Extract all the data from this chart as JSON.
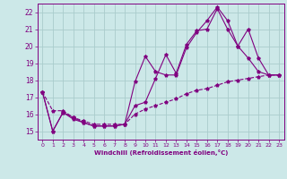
{
  "xlabel": "Windchill (Refroidissement éolien,°C)",
  "background_color": "#cce8e8",
  "grid_color": "#aacccc",
  "line_color": "#800080",
  "xlim": [
    -0.5,
    23.5
  ],
  "ylim": [
    14.5,
    22.5
  ],
  "yticks": [
    15,
    16,
    17,
    18,
    19,
    20,
    21,
    22
  ],
  "xticks": [
    0,
    1,
    2,
    3,
    4,
    5,
    6,
    7,
    8,
    9,
    10,
    11,
    12,
    13,
    14,
    15,
    16,
    17,
    18,
    19,
    20,
    21,
    22,
    23
  ],
  "series": [
    {
      "linestyle": "--",
      "x": [
        0,
        1,
        2,
        3,
        4,
        5,
        6,
        7,
        8,
        9,
        10,
        11,
        12,
        13,
        14,
        15,
        16,
        17,
        18,
        19,
        20,
        21,
        22,
        23
      ],
      "y": [
        17.3,
        16.2,
        16.2,
        15.8,
        15.6,
        15.4,
        15.4,
        15.4,
        15.4,
        16.0,
        16.3,
        16.5,
        16.7,
        16.9,
        17.2,
        17.4,
        17.5,
        17.7,
        17.9,
        18.0,
        18.1,
        18.2,
        18.3,
        18.3
      ]
    },
    {
      "linestyle": "-",
      "x": [
        0,
        1,
        2,
        3,
        4,
        5,
        6,
        7,
        8,
        9,
        10,
        11,
        12,
        13,
        14,
        15,
        16,
        17,
        18,
        19,
        20,
        21,
        22,
        23
      ],
      "y": [
        17.3,
        15.0,
        16.1,
        15.7,
        15.5,
        15.3,
        15.3,
        15.3,
        15.4,
        17.9,
        19.4,
        18.5,
        18.3,
        18.3,
        19.9,
        20.8,
        21.5,
        22.3,
        21.5,
        20.0,
        19.3,
        18.5,
        18.3,
        18.3
      ]
    },
    {
      "linestyle": "-",
      "x": [
        0,
        1,
        2,
        3,
        4,
        5,
        6,
        7,
        8,
        9,
        10,
        11,
        12,
        13,
        14,
        15,
        16,
        17,
        18,
        19,
        20,
        21,
        22,
        23
      ],
      "y": [
        17.3,
        15.0,
        16.1,
        15.8,
        15.5,
        15.3,
        15.3,
        15.3,
        15.4,
        16.5,
        16.7,
        18.1,
        19.5,
        18.4,
        20.1,
        20.9,
        21.0,
        22.2,
        21.0,
        20.0,
        21.0,
        19.3,
        18.3,
        18.3
      ]
    }
  ]
}
